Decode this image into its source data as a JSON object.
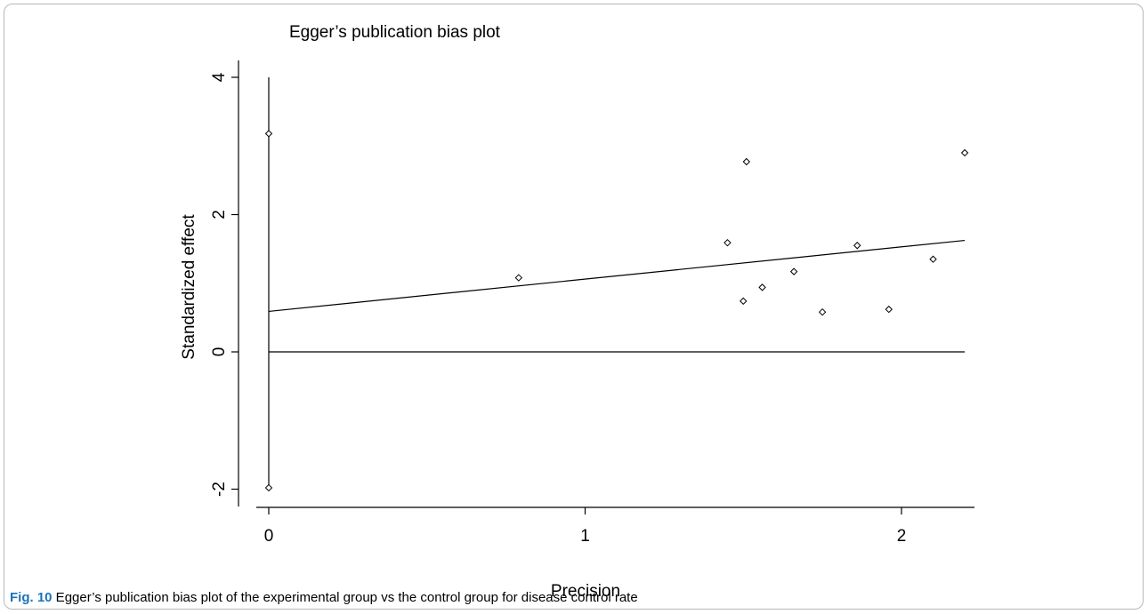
{
  "chart_data": {
    "type": "scatter",
    "title": "Egger’s publication bias plot",
    "xlabel": "Precision",
    "ylabel": "Standardized effect",
    "xlim": [
      0,
      2.25
    ],
    "ylim": [
      -2,
      4
    ],
    "x_ticks": [
      "0",
      "1",
      "2"
    ],
    "y_ticks": [
      "-2",
      "0",
      "2",
      "4"
    ],
    "grid": false,
    "points": [
      {
        "x": 0.0,
        "y": 3.18
      },
      {
        "x": 0.0,
        "y": -1.98
      },
      {
        "x": 0.79,
        "y": 1.08
      },
      {
        "x": 1.45,
        "y": 1.59
      },
      {
        "x": 1.5,
        "y": 0.74
      },
      {
        "x": 1.51,
        "y": 2.77
      },
      {
        "x": 1.56,
        "y": 0.94
      },
      {
        "x": 1.66,
        "y": 1.17
      },
      {
        "x": 1.75,
        "y": 0.58
      },
      {
        "x": 1.86,
        "y": 1.55
      },
      {
        "x": 1.96,
        "y": 0.62
      },
      {
        "x": 2.1,
        "y": 1.35
      },
      {
        "x": 2.2,
        "y": 2.9
      }
    ],
    "regression_line": {
      "intercept": 0.59,
      "slope": 0.47,
      "x_range": [
        0,
        2.2
      ]
    },
    "reference_line_y": 0
  },
  "caption": {
    "label": "Fig. 10",
    "text": " Egger’s publication bias plot of the experimental group vs the control group for disease control rate"
  }
}
